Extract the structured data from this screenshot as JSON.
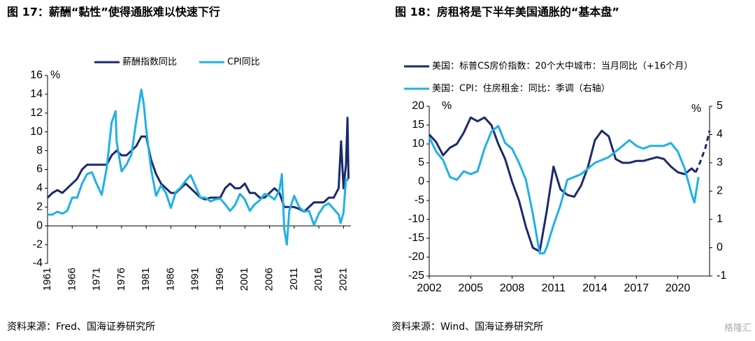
{
  "chart_data": [
    {
      "type": "line",
      "title": "图 17：薪酬“黏性”使得通胀难以快速下行",
      "y_unit": "%",
      "source": "资料来源：Fred、国海证券研究所",
      "xlim": [
        1961,
        2022.5
      ],
      "xticks": [
        1961,
        1966,
        1971,
        1976,
        1981,
        1986,
        1991,
        1996,
        2001,
        2006,
        2011,
        2016,
        2021
      ],
      "ylim": [
        -4,
        16
      ],
      "yticks": [
        -4,
        -2,
        0,
        2,
        4,
        6,
        8,
        10,
        12,
        14,
        16
      ],
      "series": [
        {
          "name": "薪酬指数同比",
          "color": "#1a2a6c",
          "x": [
            1961,
            1962,
            1963,
            1964,
            1965,
            1966,
            1967,
            1968,
            1969,
            1970,
            1971,
            1972,
            1973,
            1974,
            1975,
            1976,
            1977,
            1978,
            1979,
            1980,
            1981,
            1982,
            1983,
            1984,
            1985,
            1986,
            1987,
            1988,
            1989,
            1990,
            1991,
            1992,
            1993,
            1994,
            1995,
            1996,
            1997,
            1998,
            1999,
            2000,
            2001,
            2002,
            2003,
            2004,
            2005,
            2006,
            2007,
            2008,
            2009,
            2010,
            2011,
            2012,
            2013,
            2014,
            2015,
            2016,
            2017,
            2018,
            2019,
            2020,
            2020.5,
            2021,
            2021.5,
            2021.8,
            2022
          ],
          "values": [
            3,
            3.5,
            3.8,
            3.5,
            4,
            4.5,
            5,
            6,
            6.5,
            6.5,
            6.5,
            6.5,
            6.5,
            7.5,
            8,
            7.5,
            7.5,
            8,
            8.5,
            9.5,
            9.5,
            7,
            5.5,
            4.5,
            4,
            3.5,
            3.5,
            4,
            4.5,
            4,
            3.5,
            3,
            2.8,
            3,
            3,
            3,
            4,
            4.5,
            4,
            4,
            4.5,
            3.5,
            3.5,
            3,
            3,
            3.5,
            4,
            3.5,
            2,
            2,
            2,
            1.8,
            1.5,
            2,
            2.5,
            2.5,
            2.5,
            3,
            3,
            4,
            9,
            4,
            6.5,
            11.5,
            5
          ]
        },
        {
          "name": "CPI同比",
          "color": "#1fb0e8",
          "x": [
            1961,
            1962,
            1963,
            1964,
            1965,
            1966,
            1967,
            1968,
            1969,
            1970,
            1971,
            1972,
            1973,
            1974,
            1974.8,
            1975,
            1976,
            1977,
            1978,
            1979,
            1980,
            1980.5,
            1981,
            1982,
            1983,
            1984,
            1985,
            1986,
            1987,
            1988,
            1989,
            1990,
            1991,
            1992,
            1993,
            1994,
            1995,
            1996,
            1997,
            1998,
            1999,
            2000,
            2001,
            2002,
            2003,
            2004,
            2005,
            2006,
            2007,
            2008,
            2008.5,
            2009,
            2009.5,
            2010,
            2011,
            2012,
            2013,
            2014,
            2015,
            2016,
            2017,
            2018,
            2019,
            2020,
            2020.4,
            2021,
            2021.5,
            2022
          ],
          "values": [
            1.2,
            1.2,
            1.5,
            1.3,
            1.6,
            3,
            3,
            4.5,
            5.5,
            5.7,
            4.4,
            3.3,
            6.2,
            11,
            12.2,
            9,
            5.8,
            6.5,
            7.6,
            11.2,
            14.5,
            13,
            10.3,
            6,
            3.2,
            4.3,
            3.5,
            1.9,
            3.6,
            4.1,
            4.8,
            5.4,
            4.2,
            3,
            3,
            2.6,
            2.8,
            2.9,
            2.3,
            1.6,
            2.2,
            3.4,
            2.8,
            1.6,
            2.3,
            2.7,
            3.4,
            3.2,
            2.8,
            3.8,
            5.5,
            -0.4,
            -2,
            1.6,
            3.2,
            2,
            1.5,
            1.6,
            0.1,
            1.3,
            2.1,
            2.4,
            1.8,
            1.2,
            0.3,
            1.4,
            5,
            4.8
          ]
        }
      ]
    },
    {
      "type": "line",
      "title": "图 18：房租将是下半年美国通胀的“基本盘”",
      "y_unit": "%",
      "y2_unit": "%",
      "source": "资料来源：Wind、国海证券研究所",
      "watermark": "格隆汇",
      "xlim": [
        2002,
        2022.3
      ],
      "xticks": [
        2002,
        2005,
        2008,
        2011,
        2014,
        2017,
        2020
      ],
      "ylim": [
        -25,
        20
      ],
      "yticks": [
        -25,
        -20,
        -15,
        -10,
        -5,
        0,
        5,
        10,
        15,
        20
      ],
      "y2lim": [
        -1,
        5
      ],
      "y2ticks": [
        -1,
        0,
        1,
        2,
        3,
        4,
        5
      ],
      "series": [
        {
          "name": "美国：标普CS房价指数：20个大中城市：当月同比（+16个月）",
          "color": "#1a2a6c",
          "dash_after": 2021.3,
          "x": [
            2002,
            2002.5,
            2003,
            2003.5,
            2004,
            2004.5,
            2005,
            2005.5,
            2006,
            2006.5,
            2007,
            2007.5,
            2008,
            2008.5,
            2009,
            2009.5,
            2010,
            2010.5,
            2011,
            2011.5,
            2012,
            2012.5,
            2013,
            2013.5,
            2014,
            2014.5,
            2015,
            2015.5,
            2016,
            2016.5,
            2017,
            2017.5,
            2018,
            2018.5,
            2019,
            2019.5,
            2020,
            2020.5,
            2021,
            2021.3,
            2021.6,
            2022,
            2022.3
          ],
          "values": [
            12.5,
            10.5,
            7,
            9,
            10,
            13,
            17,
            16,
            17,
            15,
            10,
            6,
            0,
            -5,
            -12,
            -17.5,
            -18.5,
            -8,
            4,
            -2,
            -3.5,
            -4,
            -1,
            4,
            11,
            13.5,
            12,
            6,
            5,
            5,
            5.5,
            5.5,
            6,
            6.5,
            6,
            4,
            2.5,
            2,
            3.5,
            2.5,
            5,
            9,
            13.5
          ]
        },
        {
          "name": "美国：CPI：住房租金：同比：季调（右轴）",
          "color": "#1fb0e8",
          "axis": "y2",
          "x": [
            2002,
            2002.5,
            2003,
            2003.5,
            2004,
            2004.5,
            2005,
            2005.5,
            2006,
            2006.5,
            2007,
            2007.5,
            2008,
            2008.5,
            2009,
            2009.5,
            2010,
            2010.3,
            2010.5,
            2011,
            2011.5,
            2012,
            2012.5,
            2013,
            2013.5,
            2014,
            2014.5,
            2015,
            2015.5,
            2016,
            2016.5,
            2017,
            2017.5,
            2018,
            2018.5,
            2019,
            2019.5,
            2020,
            2020.5,
            2021,
            2021.2,
            2021.5
          ],
          "values": [
            3.9,
            3.4,
            3.1,
            2.5,
            2.4,
            2.7,
            2.6,
            2.7,
            3.5,
            4.1,
            4.3,
            3.7,
            3.5,
            3.0,
            2.4,
            1.2,
            -0.2,
            -0.2,
            0.0,
            0.8,
            1.5,
            2.4,
            2.5,
            2.6,
            2.8,
            3.0,
            3.1,
            3.2,
            3.4,
            3.6,
            3.8,
            3.6,
            3.5,
            3.6,
            3.6,
            3.6,
            3.7,
            3.4,
            2.8,
            1.9,
            1.6,
            2.5
          ]
        }
      ]
    }
  ]
}
